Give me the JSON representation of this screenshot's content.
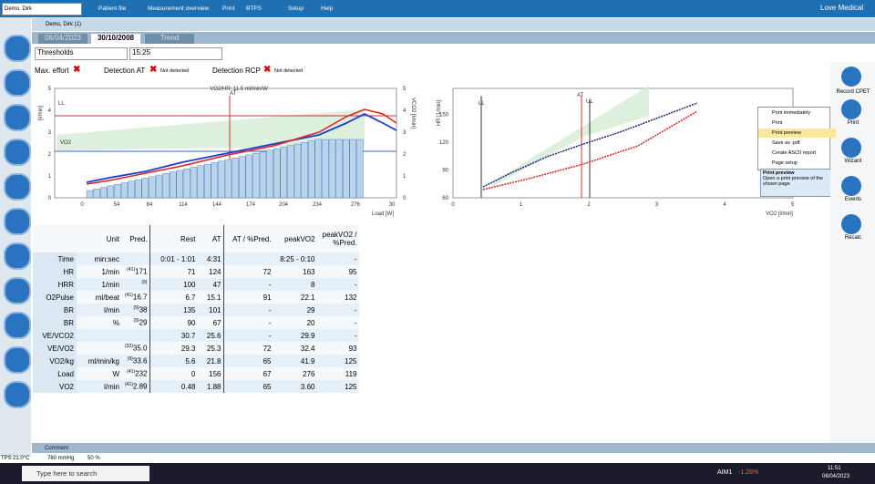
{
  "toolbar": {
    "patient": "Demo, Dirk",
    "buttons": [
      "Patient file",
      "Measurement overview",
      "Print",
      "BTPS",
      "Setup",
      "Help"
    ],
    "brand": "Love Medical"
  },
  "breadcrumb": "Demo, Dirk (1)",
  "tabs": [
    "06/04/2023",
    "30/10/2008",
    "Trend"
  ],
  "selects": [
    "Thresholds",
    "15:25"
  ],
  "flags": {
    "max_effort": "Max. effort",
    "detection_at": "Detection AT",
    "at_status": "Not detected",
    "detection_rcp": "Detection RCP",
    "rcp_status": "Not detected"
  },
  "chart1": {
    "title": "VO2/HR: 11.5 ml/min/W",
    "y_label": "[l/min]",
    "y2_label": "VCO2 [l/min]",
    "x_label": "Load [W]",
    "xticks": [
      "0",
      "54",
      "84",
      "114",
      "144",
      "174",
      "204",
      "234",
      "276",
      "30"
    ],
    "yticks": [
      "0",
      "1",
      "2",
      "3",
      "4",
      "5"
    ],
    "y2ticks": [
      "0",
      "1",
      "2",
      "3",
      "4",
      "5"
    ],
    "annotations": [
      "LL",
      "AT",
      "VO2"
    ]
  },
  "chart2": {
    "y_label": "HR [1/min]",
    "x_label": "VO2 [l/min]",
    "xticks": [
      "0",
      "1",
      "2",
      "3",
      "4",
      "5"
    ],
    "yticks": [
      "60",
      "90",
      "120",
      "150"
    ],
    "annotations": [
      "LL",
      "AT",
      "UL"
    ]
  },
  "menu": {
    "items": [
      "Print immediately",
      "Print",
      "Print preview",
      "Save as .pdf",
      "Create ASCII report",
      "Page setup"
    ],
    "tooltip_title": "Print preview",
    "tooltip_text": "Open a print preview of the shown page"
  },
  "right_buttons": [
    "Record CPET",
    "Print",
    "Wizard",
    "Events",
    "Recalc"
  ],
  "table": {
    "header": [
      "Unit",
      "Pred.",
      "Rest",
      "AT",
      "AT / %Pred.",
      "peakVO2",
      "peakVO2 / %Pred."
    ],
    "rows": [
      [
        "Time",
        "min:sec",
        null,
        null,
        "0:01 - 1:01",
        "4:31",
        null,
        "8:25 - 0:10",
        "-"
      ],
      [
        "HR",
        "1/min",
        "(41)",
        "171",
        "71",
        "124",
        "72",
        "163",
        "95"
      ],
      [
        "HRR",
        "1/min",
        "(9)",
        null,
        "100",
        "47",
        "-",
        "8",
        "-"
      ],
      [
        "O2Pulse",
        "ml/beat",
        "(41)",
        "16.7",
        "6.7",
        "15.1",
        "91",
        "22.1",
        "132"
      ],
      [
        "BR",
        "l/min",
        "(9)",
        "38",
        "135",
        "101",
        "-",
        "29",
        "-"
      ],
      [
        "BR",
        "%",
        "(9)",
        "29",
        "90",
        "67",
        "-",
        "20",
        "-"
      ],
      [
        "VE/VCO2",
        null,
        null,
        null,
        "30.7",
        "25.6",
        "-",
        "29.9",
        "-"
      ],
      [
        "VE/VO2",
        null,
        "(32)",
        "35.0",
        "29.3",
        "25.3",
        "72",
        "32.4",
        "93"
      ],
      [
        "VO2/kg",
        "ml/min/kg",
        "(9)",
        "33.6",
        "5.6",
        "21.8",
        "65",
        "41.9",
        "125"
      ],
      [
        "Load",
        "W",
        "(41)",
        "232",
        "0",
        "156",
        "67",
        "276",
        "119"
      ],
      [
        "VO2",
        "l/min",
        "(41)",
        "2.89",
        "0.48",
        "1.88",
        "65",
        "3.60",
        "125"
      ]
    ]
  },
  "comment": "Comment",
  "status": [
    "TPS",
    "21.0°C",
    "760 mmHg",
    "50 %"
  ],
  "taskbar": {
    "search": "Type here to search",
    "ticker": "AIM1",
    "change": "-1.26%",
    "time": "11:51",
    "date": "06/04/2023"
  }
}
